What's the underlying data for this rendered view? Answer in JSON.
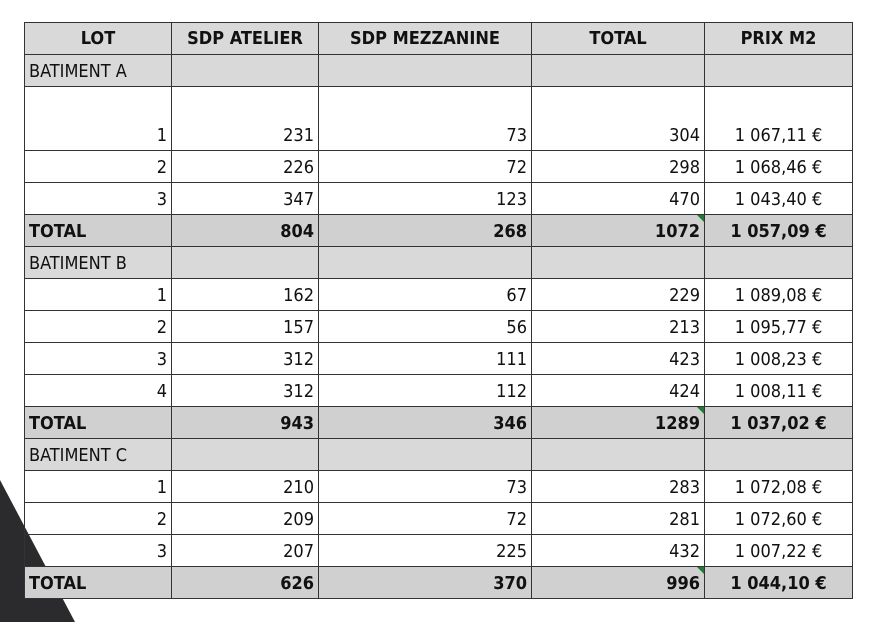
{
  "table": {
    "headers": [
      "LOT",
      "SDP ATELIER",
      "SDP MEZZANINE",
      "TOTAL",
      "PRIX M2"
    ],
    "sections": [
      {
        "name": "BATIMENT A",
        "rows": [
          [
            "1",
            "231",
            "73",
            "304",
            "1 067,11 €"
          ],
          [
            "2",
            "226",
            "72",
            "298",
            "1 068,46 €"
          ],
          [
            "3",
            "347",
            "123",
            "470",
            "1 043,40 €"
          ]
        ],
        "total": [
          "TOTAL",
          "804",
          "268",
          "1072",
          "1 057,09 €"
        ]
      },
      {
        "name": "BATIMENT B",
        "rows": [
          [
            "1",
            "162",
            "67",
            "229",
            "1 089,08 €"
          ],
          [
            "2",
            "157",
            "56",
            "213",
            "1 095,77 €"
          ],
          [
            "3",
            "312",
            "111",
            "423",
            "1 008,23 €"
          ],
          [
            "4",
            "312",
            "112",
            "424",
            "1 008,11 €"
          ]
        ],
        "total": [
          "TOTAL",
          "943",
          "346",
          "1289",
          "1 037,02 €"
        ]
      },
      {
        "name": "BATIMENT C",
        "rows": [
          [
            "1",
            "210",
            "73",
            "283",
            "1 072,08 €"
          ],
          [
            "2",
            "209",
            "72",
            "281",
            "1 072,60 €"
          ],
          [
            "3",
            "207",
            "225",
            "432",
            "1 007,22 €"
          ]
        ],
        "total": [
          "TOTAL",
          "626",
          "370",
          "996",
          "1 044,10 €"
        ]
      }
    ]
  }
}
